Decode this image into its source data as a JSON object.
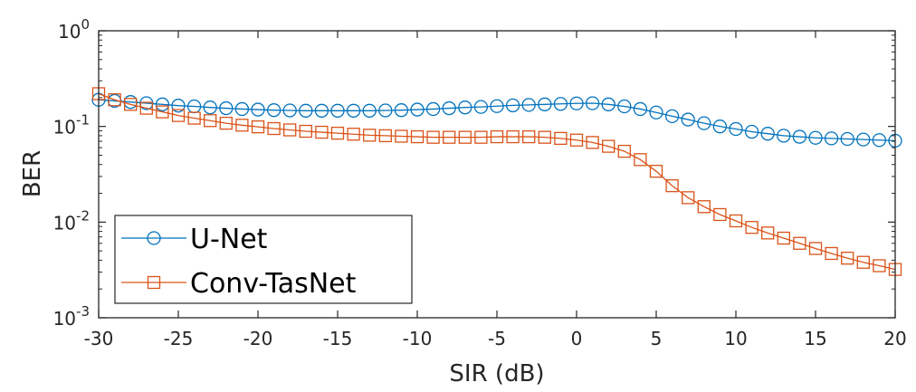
{
  "chart_data": {
    "type": "line",
    "xlabel": "SIR (dB)",
    "ylabel": "BER",
    "xlim": [
      -30,
      20
    ],
    "ylim": [
      0.001,
      1
    ],
    "yscale": "log",
    "grid": false,
    "legend_position": "bottom-left",
    "x_ticks": [
      "-30",
      "-25",
      "-20",
      "-15",
      "-10",
      "-5",
      "0",
      "5",
      "10",
      "15",
      "20"
    ],
    "y_ticks": [
      {
        "base": "10",
        "exp": "0",
        "value": 1
      },
      {
        "base": "10",
        "exp": "-1",
        "value": 0.1
      },
      {
        "base": "10",
        "exp": "-2",
        "value": 0.01
      },
      {
        "base": "10",
        "exp": "-3",
        "value": 0.001
      }
    ],
    "x": [
      -30,
      -29,
      -28,
      -27,
      -26,
      -25,
      -24,
      -23,
      -22,
      -21,
      -20,
      -19,
      -18,
      -17,
      -16,
      -15,
      -14,
      -13,
      -12,
      -11,
      -10,
      -9,
      -8,
      -7,
      -6,
      -5,
      -4,
      -3,
      -2,
      -1,
      0,
      1,
      2,
      3,
      4,
      5,
      6,
      7,
      8,
      9,
      10,
      11,
      12,
      13,
      14,
      15,
      16,
      17,
      18,
      19,
      20
    ],
    "series": [
      {
        "name": "U-Net",
        "color": "#0072BD",
        "marker": "circle",
        "values": [
          0.19,
          0.185,
          0.18,
          0.175,
          0.17,
          0.165,
          0.162,
          0.158,
          0.155,
          0.152,
          0.15,
          0.148,
          0.147,
          0.146,
          0.146,
          0.146,
          0.146,
          0.146,
          0.147,
          0.148,
          0.15,
          0.152,
          0.155,
          0.158,
          0.16,
          0.163,
          0.166,
          0.168,
          0.17,
          0.172,
          0.174,
          0.175,
          0.17,
          0.162,
          0.152,
          0.14,
          0.128,
          0.118,
          0.108,
          0.1,
          0.094,
          0.088,
          0.084,
          0.08,
          0.078,
          0.076,
          0.075,
          0.074,
          0.073,
          0.072,
          0.071
        ]
      },
      {
        "name": "Conv-TasNet",
        "color": "#D95319",
        "marker": "square",
        "values": [
          0.22,
          0.19,
          0.17,
          0.155,
          0.142,
          0.13,
          0.122,
          0.115,
          0.108,
          0.103,
          0.099,
          0.095,
          0.092,
          0.089,
          0.087,
          0.085,
          0.083,
          0.081,
          0.08,
          0.079,
          0.078,
          0.077,
          0.077,
          0.077,
          0.077,
          0.078,
          0.078,
          0.078,
          0.077,
          0.075,
          0.072,
          0.068,
          0.062,
          0.055,
          0.045,
          0.034,
          0.024,
          0.018,
          0.0145,
          0.012,
          0.0103,
          0.0088,
          0.0077,
          0.0068,
          0.006,
          0.0053,
          0.0047,
          0.0042,
          0.0038,
          0.0035,
          0.0032
        ]
      }
    ]
  }
}
